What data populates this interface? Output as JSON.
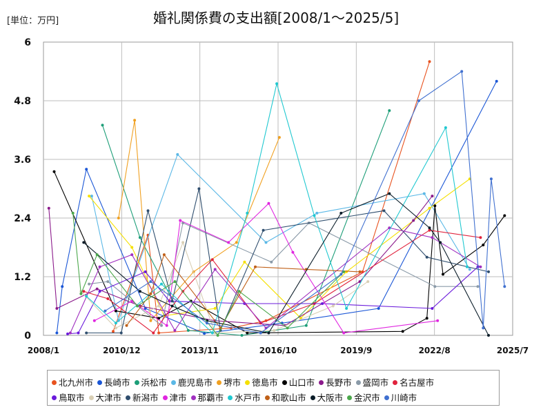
{
  "chart_data": {
    "type": "line",
    "title": "婚礼関係費の支出額[2008/1～2025/5]",
    "unit_label": "[単位：万円]",
    "ylim": [
      0,
      6
    ],
    "yticks": [
      "0",
      "1.2",
      "2.4",
      "3.6",
      "4.8",
      "6"
    ],
    "xlim": [
      2008.0,
      2025.5
    ],
    "xticks": [
      {
        "label": "2008/1",
        "value": 2008.0
      },
      {
        "label": "2010/12",
        "value": 2010.917
      },
      {
        "label": "2013/11",
        "value": 2013.833
      },
      {
        "label": "2016/10",
        "value": 2016.75
      },
      {
        "label": "2019/9",
        "value": 2019.667
      },
      {
        "label": "2022/8",
        "value": 2022.583
      },
      {
        "label": "2025/7",
        "value": 2025.5
      }
    ],
    "series": [
      {
        "name": "北九州市",
        "color": "#e8521f",
        "points": [
          [
            2010.6,
            0.08
          ],
          [
            2011.9,
            2.05
          ],
          [
            2012.3,
            0.05
          ],
          [
            2015.0,
            0.15
          ],
          [
            2016.3,
            0.3
          ],
          [
            2019.9,
            1.3
          ],
          [
            2022.4,
            5.6
          ]
        ]
      },
      {
        "name": "長崎市",
        "color": "#1a56d6",
        "points": [
          [
            2008.5,
            0.05
          ],
          [
            2008.7,
            1.0
          ],
          [
            2009.6,
            3.4
          ],
          [
            2011.8,
            0.55
          ],
          [
            2014.0,
            0.04
          ],
          [
            2016.9,
            0.25
          ],
          [
            2020.5,
            0.55
          ],
          [
            2024.9,
            5.2
          ]
        ]
      },
      {
        "name": "浜松市",
        "color": "#1d9e78",
        "points": [
          [
            2010.2,
            4.3
          ],
          [
            2011.6,
            2.0
          ],
          [
            2013.4,
            0.1
          ],
          [
            2015.4,
            0.0
          ],
          [
            2017.8,
            0.2
          ],
          [
            2020.9,
            4.6
          ]
        ]
      },
      {
        "name": "鹿児島市",
        "color": "#5bb8e6",
        "points": [
          [
            2009.8,
            2.85
          ],
          [
            2010.8,
            0.3
          ],
          [
            2013.0,
            3.7
          ],
          [
            2016.3,
            1.9
          ],
          [
            2018.2,
            2.5
          ],
          [
            2022.2,
            2.9
          ],
          [
            2023.9,
            1.35
          ]
        ]
      },
      {
        "name": "堺市",
        "color": "#f0a020",
        "points": [
          [
            2010.8,
            2.4
          ],
          [
            2011.4,
            4.4
          ],
          [
            2012.0,
            0.3
          ],
          [
            2013.6,
            1.3
          ],
          [
            2015.2,
            1.9
          ],
          [
            2016.8,
            4.05
          ]
        ]
      },
      {
        "name": "徳島市",
        "color": "#f5e000",
        "points": [
          [
            2009.7,
            2.85
          ],
          [
            2011.3,
            1.8
          ],
          [
            2012.5,
            0.4
          ],
          [
            2014.4,
            0.55
          ],
          [
            2015.5,
            1.5
          ],
          [
            2017.6,
            0.35
          ],
          [
            2019.3,
            1.3
          ],
          [
            2022.4,
            2.6
          ],
          [
            2023.9,
            3.2
          ]
        ]
      },
      {
        "name": "山口市",
        "color": "#000000",
        "points": [
          [
            2008.4,
            3.35
          ],
          [
            2010.7,
            0.5
          ],
          [
            2012.3,
            0.35
          ],
          [
            2013.5,
            0.7
          ],
          [
            2015.6,
            0.05
          ],
          [
            2021.4,
            0.08
          ],
          [
            2022.3,
            0.35
          ],
          [
            2022.6,
            2.65
          ],
          [
            2022.9,
            1.25
          ],
          [
            2024.4,
            1.85
          ],
          [
            2025.2,
            2.45
          ]
        ]
      },
      {
        "name": "長野市",
        "color": "#8b1a8b",
        "points": [
          [
            2008.2,
            2.6
          ],
          [
            2008.5,
            0.55
          ],
          [
            2010.0,
            0.95
          ],
          [
            2011.6,
            0.6
          ],
          [
            2014.4,
            0.3
          ],
          [
            2017.0,
            0.2
          ],
          [
            2019.8,
            1.1
          ],
          [
            2021.8,
            2.35
          ],
          [
            2022.5,
            2.85
          ]
        ]
      },
      {
        "name": "盛岡市",
        "color": "#8a9aa8",
        "points": [
          [
            2009.7,
            1.05
          ],
          [
            2010.4,
            1.1
          ],
          [
            2012.4,
            0.2
          ],
          [
            2013.2,
            2.3
          ],
          [
            2016.5,
            1.5
          ],
          [
            2017.9,
            2.3
          ],
          [
            2022.6,
            1.0
          ],
          [
            2024.2,
            1.0
          ]
        ]
      },
      {
        "name": "名古屋市",
        "color": "#e0223c",
        "points": [
          [
            2009.5,
            0.9
          ],
          [
            2010.4,
            0.75
          ],
          [
            2012.1,
            0.05
          ],
          [
            2013.2,
            0.9
          ],
          [
            2014.3,
            1.55
          ],
          [
            2016.1,
            0.25
          ],
          [
            2018.1,
            0.65
          ],
          [
            2022.4,
            2.15
          ],
          [
            2024.3,
            2.0
          ]
        ]
      },
      {
        "name": "鳥取市",
        "color": "#6a1adb",
        "points": [
          [
            2008.9,
            0.03
          ],
          [
            2009.3,
            0.05
          ],
          [
            2010.1,
            0.9
          ],
          [
            2011.8,
            1.3
          ],
          [
            2012.7,
            0.7
          ],
          [
            2015.5,
            0.65
          ],
          [
            2018.4,
            0.65
          ],
          [
            2022.5,
            0.55
          ],
          [
            2024.2,
            1.4
          ]
        ]
      },
      {
        "name": "大津市",
        "color": "#d9cfb5",
        "points": [
          [
            2009.4,
            0.9
          ],
          [
            2010.7,
            0.15
          ],
          [
            2012.3,
            0.6
          ],
          [
            2013.2,
            1.9
          ],
          [
            2014.4,
            0.05
          ],
          [
            2016.6,
            0.1
          ],
          [
            2018.8,
            0.6
          ],
          [
            2020.1,
            1.1
          ]
        ]
      },
      {
        "name": "新潟市",
        "color": "#2f4e6e",
        "points": [
          [
            2009.6,
            0.05
          ],
          [
            2010.9,
            0.05
          ],
          [
            2011.9,
            2.55
          ],
          [
            2012.8,
            0.7
          ],
          [
            2013.8,
            3.0
          ],
          [
            2014.6,
            0.1
          ],
          [
            2016.2,
            2.15
          ],
          [
            2020.7,
            2.55
          ],
          [
            2022.3,
            1.6
          ],
          [
            2024.6,
            1.3
          ]
        ]
      },
      {
        "name": "津市",
        "color": "#e026e0",
        "points": [
          [
            2009.9,
            0.3
          ],
          [
            2011.3,
            0.7
          ],
          [
            2012.6,
            0.2
          ],
          [
            2013.1,
            2.35
          ],
          [
            2014.9,
            1.9
          ],
          [
            2016.4,
            2.7
          ],
          [
            2017.3,
            1.7
          ],
          [
            2019.2,
            0.05
          ],
          [
            2022.7,
            0.3
          ]
        ]
      },
      {
        "name": "那覇市",
        "color": "#a030c0",
        "points": [
          [
            2009.0,
            0.05
          ],
          [
            2010.1,
            1.4
          ],
          [
            2011.3,
            1.65
          ],
          [
            2012.9,
            0.1
          ],
          [
            2014.4,
            1.35
          ],
          [
            2016.3,
            0.15
          ],
          [
            2020.9,
            2.2
          ],
          [
            2022.5,
            2.0
          ],
          [
            2024.3,
            1.4
          ]
        ]
      },
      {
        "name": "水戸市",
        "color": "#20c8d0",
        "points": [
          [
            2009.6,
            0.8
          ],
          [
            2010.7,
            0.25
          ],
          [
            2012.4,
            1.05
          ],
          [
            2014.3,
            0.05
          ],
          [
            2015.6,
            2.5
          ],
          [
            2016.7,
            5.15
          ],
          [
            2018.1,
            2.45
          ],
          [
            2019.3,
            0.55
          ],
          [
            2023.0,
            4.25
          ],
          [
            2023.8,
            1.4
          ]
        ]
      },
      {
        "name": "和歌山市",
        "color": "#c06018",
        "points": [
          [
            2011.1,
            0.2
          ],
          [
            2012.0,
            0.85
          ],
          [
            2012.5,
            1.65
          ],
          [
            2014.6,
            0.15
          ],
          [
            2015.9,
            1.4
          ],
          [
            2017.8,
            1.35
          ],
          [
            2019.8,
            1.3
          ]
        ]
      },
      {
        "name": "大阪市",
        "color": "#0a1c28",
        "points": [
          [
            2009.5,
            1.9
          ],
          [
            2011.6,
            0.9
          ],
          [
            2012.8,
            0.6
          ],
          [
            2014.1,
            0.3
          ],
          [
            2016.4,
            0.05
          ],
          [
            2019.1,
            2.5
          ],
          [
            2020.9,
            2.9
          ],
          [
            2022.4,
            2.2
          ],
          [
            2022.8,
            1.9
          ],
          [
            2024.6,
            0.0
          ]
        ]
      },
      {
        "name": "金沢市",
        "color": "#4ca84c",
        "points": [
          [
            2009.1,
            2.5
          ],
          [
            2009.4,
            0.85
          ],
          [
            2010.0,
            1.65
          ],
          [
            2011.5,
            0.6
          ],
          [
            2012.9,
            1.1
          ],
          [
            2014.5,
            0.0
          ],
          [
            2015.3,
            0.9
          ],
          [
            2017.1,
            0.15
          ],
          [
            2019.2,
            1.3
          ]
        ]
      },
      {
        "name": "川崎市",
        "color": "#4070d0",
        "points": [
          [
            2010.3,
            0.5
          ],
          [
            2012.0,
            1.1
          ],
          [
            2014.1,
            0.25
          ],
          [
            2016.1,
            0.05
          ],
          [
            2019.1,
            1.25
          ],
          [
            2022.0,
            4.8
          ],
          [
            2023.6,
            5.4
          ],
          [
            2024.4,
            0.15
          ],
          [
            2024.7,
            3.2
          ],
          [
            2025.2,
            1.0
          ]
        ]
      }
    ]
  }
}
